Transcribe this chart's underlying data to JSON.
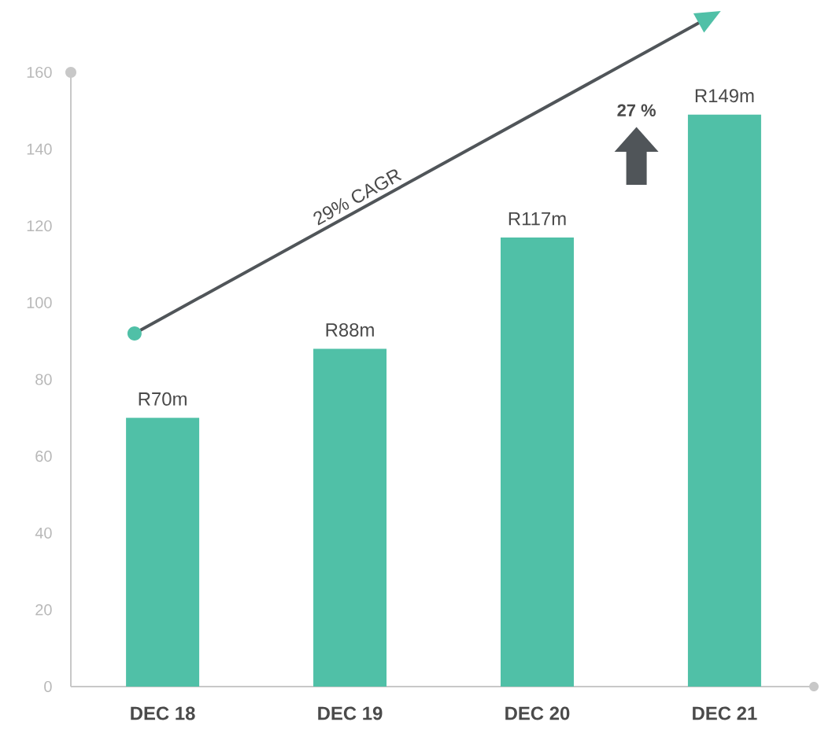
{
  "chart_data": {
    "type": "bar",
    "categories": [
      "DEC 18",
      "DEC 19",
      "DEC 20",
      "DEC 21"
    ],
    "values": [
      70,
      88,
      117,
      149
    ],
    "value_labels": [
      "R70m",
      "R88m",
      "R117m",
      "R149m"
    ],
    "color": "#50c0a7",
    "ylim": [
      0,
      160
    ],
    "yticks": [
      0,
      20,
      40,
      60,
      80,
      100,
      120,
      140,
      160
    ],
    "annotations": [
      "29% CAGR",
      "27 %"
    ]
  }
}
